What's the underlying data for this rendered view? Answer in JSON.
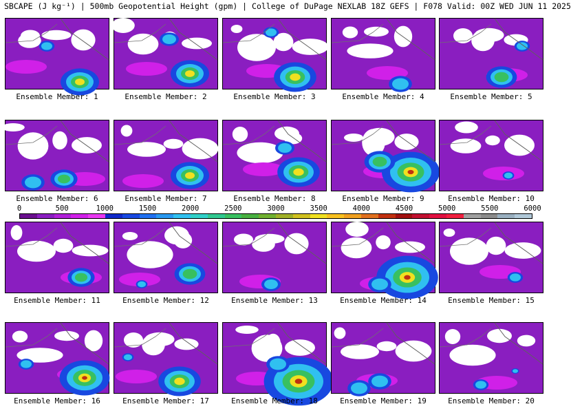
{
  "header": {
    "title": "SBCAPE (J kg⁻¹) | 500mb Geopotential Height (gpm) | College of DuPage NEXLAB 18Z GEFS | F078 Valid: 00Z WED JUN 11 2025"
  },
  "colorbar": {
    "ticks": [
      "0",
      "500",
      "1000",
      "1500",
      "2000",
      "2500",
      "3000",
      "3500",
      "4000",
      "4500",
      "5000",
      "5500",
      "6000"
    ],
    "colors": [
      "#6a0f8e",
      "#8a1ec0",
      "#b020d8",
      "#d020e8",
      "#e838f0",
      "#1028c8",
      "#1848e0",
      "#2070f0",
      "#2898f0",
      "#30c0f0",
      "#30d0c8",
      "#30c890",
      "#38c060",
      "#48b040",
      "#70b030",
      "#a0b028",
      "#d0c020",
      "#f0e020",
      "#f8c020",
      "#f0a020",
      "#e07020",
      "#c03010",
      "#a01010",
      "#c01030",
      "#e01040",
      "#f02040",
      "#a0a0a0",
      "#8c8c8c",
      "#9ab0c0",
      "#b0c8d8"
    ]
  },
  "members": [
    {
      "label": "Ensemble Member: 1"
    },
    {
      "label": "Ensemble Member: 2"
    },
    {
      "label": "Ensemble Member: 3"
    },
    {
      "label": "Ensemble Member: 4"
    },
    {
      "label": "Ensemble Member: 5"
    },
    {
      "label": "Ensemble Member: 6"
    },
    {
      "label": "Ensemble Member: 7"
    },
    {
      "label": "Ensemble Member: 8"
    },
    {
      "label": "Ensemble Member: 9"
    },
    {
      "label": "Ensemble Member: 10"
    },
    {
      "label": "Ensemble Member: 11"
    },
    {
      "label": "Ensemble Member: 12"
    },
    {
      "label": "Ensemble Member: 13"
    },
    {
      "label": "Ensemble Member: 14"
    },
    {
      "label": "Ensemble Member: 15"
    },
    {
      "label": "Ensemble Member: 16"
    },
    {
      "label": "Ensemble Member: 17"
    },
    {
      "label": "Ensemble Member: 18"
    },
    {
      "label": "Ensemble Member: 19"
    },
    {
      "label": "Ensemble Member: 20"
    }
  ]
}
